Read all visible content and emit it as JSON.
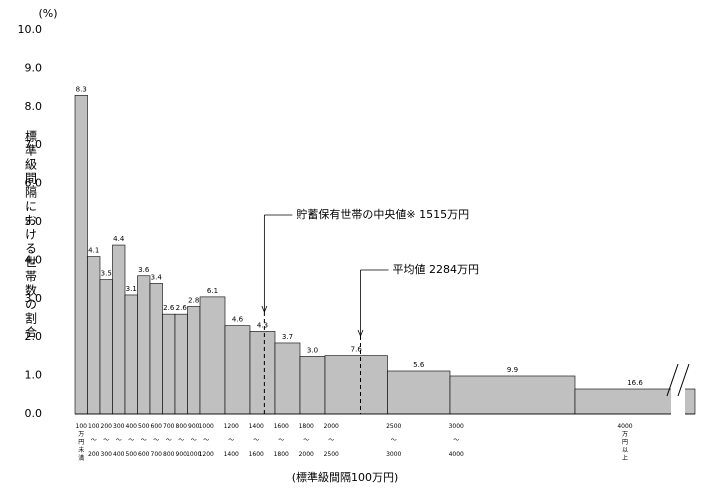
{
  "chart_data": {
    "type": "histogram",
    "y_unit_label": "(%)",
    "y_label": "標準級間隔における世帯数の割合",
    "x_label": "(標準級間隔100万円)",
    "bins": [
      0,
      100,
      200,
      300,
      400,
      500,
      600,
      700,
      800,
      900,
      1000,
      1200,
      1400,
      1600,
      1800,
      2000,
      2500,
      3000,
      4000,
      6550
    ],
    "categories": [
      "100万円未満",
      "100〜200",
      "200〜300",
      "300〜400",
      "400〜500",
      "500〜600",
      "600〜700",
      "700〜800",
      "800〜900",
      "900〜1000",
      "1000〜1200",
      "1200〜1400",
      "1400〜1600",
      "1600〜1800",
      "1800〜2000",
      "2000〜2500",
      "2500〜3000",
      "3000〜4000",
      "4000万円以上"
    ],
    "values": [
      8.3,
      4.1,
      3.5,
      4.4,
      3.1,
      3.6,
      3.4,
      2.6,
      2.6,
      2.8,
      6.1,
      4.6,
      4.3,
      3.7,
      3.0,
      7.6,
      5.6,
      9.9,
      16.6
    ],
    "value_labels": [
      "8.3",
      "4.1",
      "3.5",
      "4.4",
      "3.1",
      "3.6",
      "3.4",
      "2.6",
      "2.6",
      "2.8",
      "6.1",
      "4.6",
      "4.3",
      "3.7",
      "3.0",
      "7.6",
      "5.6",
      "9.9",
      "16.6"
    ],
    "color": "#c0c0c0",
    "ylim": [
      0,
      10
    ],
    "yticks": [
      {
        "value": 0,
        "label": "0.0"
      },
      {
        "value": 1,
        "label": "1.0"
      },
      {
        "value": 2,
        "label": "2.0"
      },
      {
        "value": 3,
        "label": "3.0"
      },
      {
        "value": 4,
        "label": "4.0"
      },
      {
        "value": 5,
        "label": "5.0"
      },
      {
        "value": 6,
        "label": "6.0"
      },
      {
        "value": 7,
        "label": "7.0"
      },
      {
        "value": 8,
        "label": "8.0"
      },
      {
        "value": 9,
        "label": "9.0"
      },
      {
        "value": 10,
        "label": "10.0"
      }
    ],
    "annotations": [
      {
        "text": "貯蓄保有世帯の中央値※ 1515万円",
        "x": 1515
      },
      {
        "text": "平均値 2284万円",
        "x": 2284
      }
    ]
  }
}
